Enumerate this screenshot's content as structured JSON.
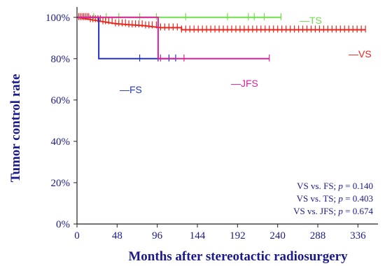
{
  "chart_data": {
    "type": "line",
    "title": "",
    "xlabel": "Months after stereotactic radiosurgery",
    "ylabel": "Tumor control rate",
    "xlim": [
      0,
      360
    ],
    "ylim": [
      0,
      105
    ],
    "x_ticks": [
      0,
      48,
      96,
      144,
      192,
      240,
      288,
      336
    ],
    "y_ticks": [
      {
        "value": 0,
        "label": "0%"
      },
      {
        "value": 20,
        "label": "20%"
      },
      {
        "value": 40,
        "label": "40%"
      },
      {
        "value": 60,
        "label": "60%"
      },
      {
        "value": 80,
        "label": "80%"
      },
      {
        "value": 100,
        "label": "100%"
      }
    ],
    "grid": false,
    "series": [
      {
        "name": "VS",
        "label": "—VS",
        "color": "#e8251b",
        "steps": [
          [
            0,
            100
          ],
          [
            15,
            99
          ],
          [
            30,
            98
          ],
          [
            45,
            97
          ],
          [
            60,
            96.5
          ],
          [
            80,
            96
          ],
          [
            100,
            95
          ],
          [
            125,
            95
          ],
          [
            125,
            94
          ],
          [
            345,
            94
          ]
        ],
        "censor_marks": [
          2,
          4,
          6,
          8,
          10,
          12,
          14,
          16,
          19,
          22,
          25,
          28,
          31,
          34,
          38,
          42,
          46,
          50,
          54,
          58,
          62,
          66,
          70,
          74,
          78,
          82,
          86,
          90,
          95,
          100,
          105,
          110,
          115,
          120,
          125,
          130,
          135,
          140,
          145,
          150,
          155,
          160,
          165,
          170,
          175,
          180,
          185,
          190,
          195,
          200,
          205,
          210,
          215,
          220,
          225,
          230,
          235,
          240,
          245,
          250,
          255,
          260,
          265,
          270,
          275,
          280,
          285,
          290,
          295,
          300,
          305,
          310,
          315,
          320,
          325,
          330,
          335,
          340,
          345
        ]
      },
      {
        "name": "TS",
        "label": "—TS",
        "color": "#6fe04a",
        "steps": [
          [
            0,
            100
          ],
          [
            244,
            100
          ]
        ],
        "censor_marks": [
          20,
          35,
          50,
          75,
          95,
          130,
          180,
          205,
          212,
          224,
          244
        ]
      },
      {
        "name": "FS",
        "label": "—FS",
        "color": "#2233cc",
        "steps": [
          [
            0,
            100
          ],
          [
            26,
            100
          ],
          [
            26,
            80
          ],
          [
            118,
            80
          ]
        ],
        "censor_marks": [
          75,
          97,
          110,
          118
        ]
      },
      {
        "name": "JFS",
        "label": "—JFS",
        "color": "#e0209a",
        "steps": [
          [
            0,
            100
          ],
          [
            97,
            100
          ],
          [
            97,
            80
          ],
          [
            230,
            80
          ]
        ],
        "censor_marks": [
          100,
          128,
          230
        ]
      }
    ],
    "annotations": [
      {
        "prefix": "VS  vs.  FS; ",
        "p": "p",
        "suffix": " = 0.140"
      },
      {
        "prefix": "VS  vs.  TS; ",
        "p": "p",
        "suffix": " = 0.403"
      },
      {
        "prefix": "VS  vs. JFS; ",
        "p": "p",
        "suffix": " = 0.674"
      }
    ]
  }
}
